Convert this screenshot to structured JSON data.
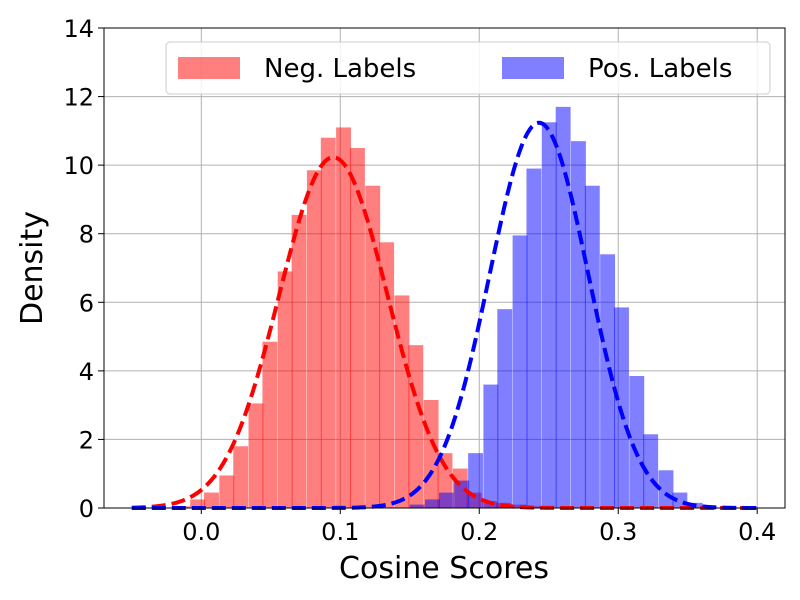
{
  "chart_data": {
    "type": "bar",
    "subtype": "histogram-with-density-curve",
    "xlabel": "Cosine Scores",
    "ylabel": "Density",
    "xlim": [
      -0.07,
      0.42
    ],
    "ylim": [
      0,
      14
    ],
    "xticks": [
      "0.0",
      "0.1",
      "0.2",
      "0.3",
      "0.4"
    ],
    "yticks": [
      "0",
      "2",
      "4",
      "6",
      "8",
      "10",
      "12",
      "14"
    ],
    "grid": true,
    "legend_position": "top",
    "series": [
      {
        "name": "Neg. Labels",
        "color": "#ff0000",
        "bar_alpha": 0.5,
        "bin_width": 0.0105,
        "bins": [
          [
            -0.019,
            0.05
          ],
          [
            -0.008,
            0.25
          ],
          [
            0.002,
            0.45
          ],
          [
            0.013,
            0.95
          ],
          [
            0.023,
            1.8
          ],
          [
            0.034,
            3.05
          ],
          [
            0.044,
            4.85
          ],
          [
            0.055,
            6.9
          ],
          [
            0.065,
            8.55
          ],
          [
            0.076,
            9.85
          ],
          [
            0.086,
            10.8
          ],
          [
            0.097,
            11.1
          ],
          [
            0.107,
            10.5
          ],
          [
            0.118,
            9.4
          ],
          [
            0.128,
            7.75
          ],
          [
            0.139,
            6.2
          ],
          [
            0.149,
            4.75
          ],
          [
            0.16,
            3.15
          ],
          [
            0.17,
            1.6
          ],
          [
            0.181,
            1.15
          ],
          [
            0.191,
            0.45
          ],
          [
            0.202,
            0.2
          ],
          [
            0.212,
            0.15
          ],
          [
            0.223,
            0.1
          ],
          [
            0.233,
            0.05
          ]
        ],
        "curve": {
          "type": "normal",
          "mean": 0.095,
          "std": 0.039
        }
      },
      {
        "name": "Pos. Labels",
        "color": "#0000ff",
        "bar_alpha": 0.5,
        "bin_width": 0.0105,
        "bins": [
          [
            0.15,
            0.1
          ],
          [
            0.161,
            0.25
          ],
          [
            0.171,
            0.45
          ],
          [
            0.182,
            0.8
          ],
          [
            0.192,
            1.6
          ],
          [
            0.203,
            3.6
          ],
          [
            0.213,
            5.8
          ],
          [
            0.224,
            7.95
          ],
          [
            0.234,
            9.9
          ],
          [
            0.245,
            11.25
          ],
          [
            0.255,
            11.7
          ],
          [
            0.266,
            10.7
          ],
          [
            0.276,
            9.4
          ],
          [
            0.287,
            7.4
          ],
          [
            0.297,
            5.85
          ],
          [
            0.308,
            3.85
          ],
          [
            0.318,
            2.15
          ],
          [
            0.329,
            1.1
          ],
          [
            0.339,
            0.45
          ],
          [
            0.35,
            0.15
          ],
          [
            0.36,
            0.05
          ]
        ],
        "curve": {
          "type": "normal",
          "mean": 0.243,
          "std": 0.0355
        }
      }
    ]
  }
}
